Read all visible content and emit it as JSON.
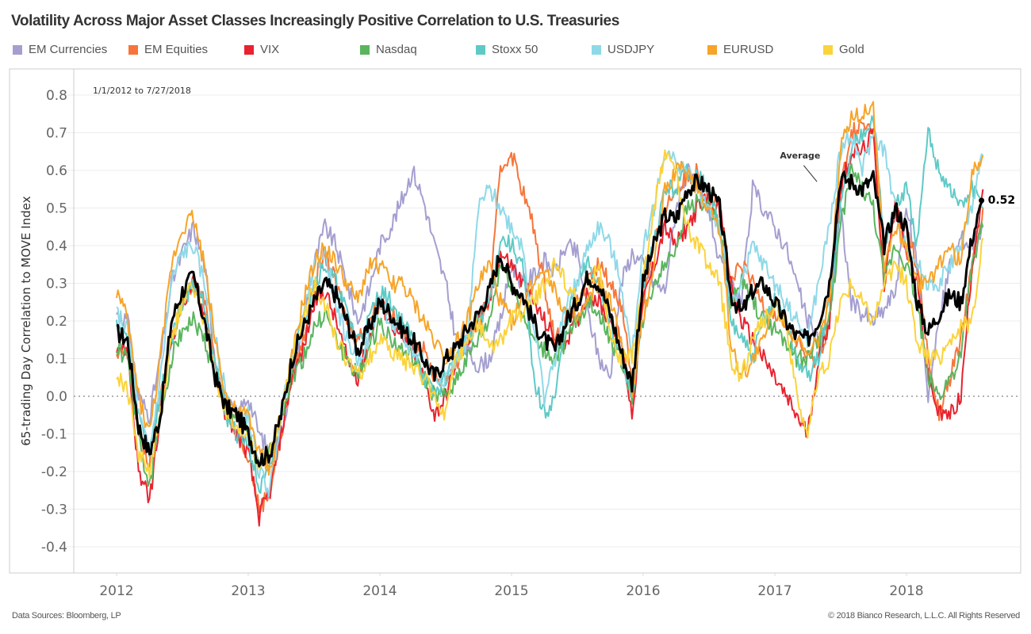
{
  "title": "Volatility Across Major Asset Classes Increasingly Positive Correlation to U.S. Treasuries",
  "footer": {
    "source": "Data Sources: Bloomberg, LP",
    "copyright": "© 2018 Bianco Research, L.L.C. All Rights Reserved"
  },
  "legend": [
    {
      "name": "EM Currencies",
      "color": "#a49fd0"
    },
    {
      "name": "EM Equities",
      "color": "#f7753a"
    },
    {
      "name": "VIX",
      "color": "#e8232f"
    },
    {
      "name": "Nasdaq",
      "color": "#59b55e"
    },
    {
      "name": "Stoxx 50",
      "color": "#5ecac6"
    },
    {
      "name": "USDJPY",
      "color": "#8ed9e8"
    },
    {
      "name": "EURUSD",
      "color": "#f7a428"
    },
    {
      "name": "Gold",
      "color": "#fbd33b"
    }
  ],
  "chart_data": {
    "type": "line",
    "title": "Volatility Across Major Asset Classes Increasingly Positive Correlation to U.S. Treasuries",
    "date_range_label": "1/1/2012 to 7/27/2018",
    "xlabel": "",
    "ylabel": "65-trading Day Correlation to MOVE Index",
    "ylim": [
      -0.46,
      0.85
    ],
    "yticks": [
      -0.4,
      -0.3,
      -0.2,
      -0.1,
      0.0,
      0.1,
      0.2,
      0.3,
      0.4,
      0.5,
      0.6,
      0.7,
      0.8
    ],
    "ytick_labels": [
      "-0.4",
      "-0.3",
      "-0.2",
      "-0.1",
      "0.0",
      "0.1",
      "0.2",
      "0.3",
      "0.4",
      "0.5",
      "0.6",
      "0.7",
      "0.8"
    ],
    "xticks": [
      2012,
      2013,
      2014,
      2015,
      2016,
      2017,
      2018
    ],
    "xtick_labels": [
      "2012",
      "2013",
      "2014",
      "2015",
      "2016",
      "2017",
      "2018"
    ],
    "xlim": [
      2011.67,
      2018.87
    ],
    "x_start": 2012.0,
    "x_step_years": 0.0833,
    "reference_line": {
      "y": 0.0,
      "style": "dotted"
    },
    "grid": true,
    "annotations": [
      {
        "text": "Average",
        "x": 2017.4,
        "y": 0.63,
        "points_to": [
          2017.32,
          0.57
        ]
      },
      {
        "text": "0.52",
        "x": 2018.57,
        "y": 0.52
      }
    ],
    "series": [
      {
        "name": "EM Currencies",
        "color": "#a49fd0",
        "values": [
          0.22,
          0.2,
          0.0,
          -0.05,
          0.1,
          0.3,
          0.38,
          0.45,
          0.35,
          0.1,
          -0.02,
          -0.05,
          0.0,
          -0.1,
          -0.15,
          -0.1,
          0.05,
          0.2,
          0.35,
          0.45,
          0.4,
          0.3,
          0.2,
          0.28,
          0.4,
          0.45,
          0.52,
          0.6,
          0.52,
          0.4,
          0.3,
          0.15,
          0.12,
          0.08,
          0.1,
          0.2,
          0.35,
          0.3,
          0.32,
          0.36,
          0.33,
          0.4,
          0.38,
          0.22,
          0.1,
          0.05,
          0.3,
          0.38,
          0.35,
          0.3,
          0.28,
          0.5,
          0.6,
          0.55,
          0.5,
          0.35,
          0.3,
          0.25,
          0.55,
          0.5,
          0.45,
          0.4,
          0.3,
          0.2,
          0.15,
          0.2,
          0.5,
          0.25,
          0.22,
          0.2,
          0.23,
          0.28,
          0.5,
          0.35,
          0.0,
          0.2,
          0.35,
          0.42,
          0.4,
          0.45
        ]
      },
      {
        "name": "EM Equities",
        "color": "#f7753a",
        "values": [
          0.1,
          0.12,
          -0.1,
          -0.18,
          0.0,
          0.15,
          0.25,
          0.3,
          0.25,
          0.1,
          -0.05,
          -0.1,
          -0.15,
          -0.3,
          -0.25,
          -0.1,
          0.05,
          0.15,
          0.3,
          0.38,
          0.3,
          0.2,
          0.15,
          0.2,
          0.25,
          0.22,
          0.18,
          0.15,
          0.12,
          0.05,
          0.05,
          0.08,
          0.15,
          0.2,
          0.25,
          0.6,
          0.65,
          0.55,
          0.45,
          0.3,
          0.15,
          0.2,
          0.25,
          0.3,
          0.35,
          0.3,
          0.25,
          0.05,
          0.25,
          0.4,
          0.5,
          0.55,
          0.58,
          0.6,
          0.55,
          0.5,
          0.3,
          0.35,
          0.3,
          0.25,
          0.22,
          0.2,
          0.15,
          0.1,
          0.1,
          0.2,
          0.55,
          0.7,
          0.72,
          0.7,
          0.3,
          0.5,
          0.45,
          0.35,
          0.1,
          -0.05,
          0.05,
          0.15,
          0.35,
          0.5
        ]
      },
      {
        "name": "VIX",
        "color": "#e8232f",
        "values": [
          0.14,
          0.12,
          -0.2,
          -0.28,
          -0.05,
          0.15,
          0.25,
          0.3,
          0.22,
          0.05,
          -0.05,
          -0.1,
          -0.15,
          -0.32,
          -0.25,
          -0.1,
          0.05,
          0.12,
          0.25,
          0.28,
          0.2,
          0.1,
          0.05,
          0.15,
          0.25,
          0.2,
          0.15,
          0.12,
          0.05,
          -0.05,
          0.0,
          0.1,
          0.15,
          0.2,
          0.25,
          0.38,
          0.35,
          0.3,
          0.25,
          0.2,
          0.15,
          0.15,
          0.2,
          0.28,
          0.25,
          0.2,
          0.15,
          -0.05,
          0.25,
          0.35,
          0.45,
          0.4,
          0.45,
          0.5,
          0.52,
          0.5,
          0.3,
          0.2,
          0.15,
          0.1,
          0.05,
          0.0,
          -0.05,
          -0.1,
          0.1,
          0.2,
          0.55,
          0.65,
          0.65,
          0.7,
          0.3,
          0.5,
          0.4,
          0.3,
          0.05,
          -0.05,
          -0.05,
          0.0,
          0.35,
          0.55
        ]
      },
      {
        "name": "Nasdaq",
        "color": "#59b55e",
        "values": [
          0.13,
          0.1,
          -0.1,
          -0.25,
          -0.05,
          0.1,
          0.18,
          0.2,
          0.15,
          0.05,
          -0.05,
          -0.05,
          -0.1,
          -0.2,
          -0.15,
          -0.05,
          0.05,
          0.1,
          0.18,
          0.22,
          0.15,
          0.1,
          0.05,
          0.12,
          0.2,
          0.15,
          0.12,
          0.1,
          0.05,
          0.0,
          0.0,
          0.05,
          0.1,
          0.15,
          0.2,
          0.35,
          0.3,
          0.22,
          0.15,
          0.12,
          0.1,
          0.15,
          0.2,
          0.25,
          0.22,
          0.15,
          0.1,
          0.0,
          0.2,
          0.3,
          0.35,
          0.4,
          0.5,
          0.52,
          0.5,
          0.45,
          0.25,
          0.3,
          0.25,
          0.2,
          0.18,
          0.15,
          0.1,
          0.1,
          0.15,
          0.2,
          0.45,
          0.6,
          0.55,
          0.5,
          0.3,
          0.4,
          0.35,
          0.25,
          0.05,
          0.0,
          0.05,
          0.1,
          0.35,
          0.45
        ]
      },
      {
        "name": "Stoxx 50",
        "color": "#5ecac6",
        "values": [
          0.2,
          0.15,
          -0.05,
          -0.15,
          0.0,
          0.15,
          0.25,
          0.3,
          0.25,
          0.1,
          -0.05,
          -0.1,
          -0.12,
          -0.25,
          -0.2,
          -0.05,
          0.1,
          0.2,
          0.3,
          0.35,
          0.3,
          0.22,
          0.15,
          0.2,
          0.28,
          0.25,
          0.2,
          0.15,
          0.05,
          0.0,
          0.05,
          0.1,
          0.15,
          0.2,
          0.25,
          0.42,
          0.4,
          0.35,
          0.05,
          -0.05,
          0.0,
          0.2,
          0.3,
          0.35,
          0.3,
          0.2,
          0.1,
          0.0,
          0.3,
          0.4,
          0.55,
          0.55,
          0.6,
          0.58,
          0.55,
          0.45,
          0.2,
          0.15,
          0.1,
          0.2,
          0.25,
          0.2,
          0.1,
          0.05,
          0.1,
          0.25,
          0.5,
          0.65,
          0.7,
          0.75,
          0.4,
          0.5,
          0.55,
          0.4,
          0.7,
          0.6,
          0.55,
          0.5,
          0.55,
          0.5
        ]
      },
      {
        "name": "USDJPY",
        "color": "#8ed9e8",
        "values": [
          0.22,
          0.18,
          -0.05,
          -0.15,
          0.05,
          0.3,
          0.38,
          0.4,
          0.3,
          0.15,
          0.0,
          -0.05,
          -0.05,
          -0.2,
          -0.25,
          -0.05,
          0.1,
          0.2,
          0.35,
          0.38,
          0.25,
          0.15,
          0.1,
          0.15,
          0.25,
          0.2,
          0.15,
          0.12,
          0.1,
          0.05,
          0.05,
          0.1,
          0.15,
          0.5,
          0.55,
          0.5,
          0.45,
          0.4,
          0.2,
          0.0,
          0.1,
          0.25,
          0.3,
          0.4,
          0.45,
          0.4,
          0.3,
          0.1,
          0.4,
          0.5,
          0.65,
          0.62,
          0.6,
          0.55,
          0.5,
          0.45,
          0.25,
          0.3,
          0.4,
          0.35,
          0.3,
          0.25,
          0.2,
          0.15,
          0.3,
          0.45,
          0.65,
          0.7,
          0.6,
          0.7,
          0.65,
          0.5,
          0.4,
          0.35,
          0.3,
          0.3,
          0.35,
          0.4,
          0.5,
          0.64
        ]
      },
      {
        "name": "EURUSD",
        "color": "#f7a428",
        "values": [
          0.28,
          0.2,
          0.0,
          -0.1,
          0.1,
          0.35,
          0.45,
          0.48,
          0.35,
          0.15,
          0.0,
          -0.05,
          -0.05,
          -0.15,
          -0.2,
          -0.05,
          0.1,
          0.25,
          0.35,
          0.4,
          0.35,
          0.3,
          0.25,
          0.35,
          0.35,
          0.3,
          0.3,
          0.25,
          0.2,
          0.15,
          0.1,
          0.15,
          0.2,
          0.3,
          0.35,
          0.25,
          0.2,
          0.25,
          0.3,
          0.35,
          0.28,
          0.22,
          0.2,
          0.25,
          0.3,
          0.25,
          0.15,
          0.0,
          0.2,
          0.35,
          0.55,
          0.6,
          0.6,
          0.55,
          0.5,
          0.45,
          0.15,
          0.05,
          0.1,
          0.15,
          0.25,
          0.2,
          0.15,
          0.1,
          0.15,
          0.25,
          0.65,
          0.75,
          0.75,
          0.78,
          0.35,
          0.45,
          0.4,
          0.3,
          0.3,
          0.35,
          0.4,
          0.35,
          0.6,
          0.64
        ]
      },
      {
        "name": "Gold",
        "color": "#fbd33b",
        "values": [
          0.05,
          0.02,
          -0.15,
          -0.2,
          -0.05,
          0.15,
          0.25,
          0.3,
          0.2,
          0.05,
          -0.05,
          -0.1,
          -0.1,
          -0.18,
          -0.15,
          -0.05,
          0.1,
          0.2,
          0.3,
          0.25,
          0.15,
          0.1,
          0.05,
          0.1,
          0.15,
          0.12,
          0.1,
          0.08,
          0.05,
          0.0,
          -0.05,
          0.1,
          0.15,
          0.2,
          0.12,
          0.15,
          0.2,
          0.22,
          0.25,
          0.3,
          0.35,
          0.3,
          0.25,
          0.3,
          0.35,
          0.15,
          0.1,
          0.1,
          0.3,
          0.5,
          0.65,
          0.6,
          0.45,
          0.4,
          0.35,
          0.3,
          0.1,
          0.05,
          0.15,
          0.2,
          0.25,
          0.2,
          0.0,
          -0.1,
          0.05,
          0.1,
          0.25,
          0.3,
          0.25,
          0.2,
          0.3,
          0.35,
          0.3,
          0.15,
          0.1,
          0.1,
          0.15,
          0.18,
          0.2,
          0.42
        ]
      },
      {
        "name": "Average",
        "color": "#000000",
        "values": [
          0.17,
          0.15,
          -0.08,
          -0.15,
          -0.05,
          0.2,
          0.28,
          0.32,
          0.2,
          0.05,
          -0.03,
          -0.05,
          -0.1,
          -0.17,
          -0.15,
          -0.05,
          0.1,
          0.18,
          0.25,
          0.3,
          0.27,
          0.2,
          0.12,
          0.18,
          0.25,
          0.22,
          0.18,
          0.15,
          0.1,
          0.05,
          0.1,
          0.13,
          0.18,
          0.22,
          0.28,
          0.38,
          0.3,
          0.27,
          0.2,
          0.15,
          0.12,
          0.2,
          0.25,
          0.32,
          0.3,
          0.22,
          0.12,
          0.03,
          0.3,
          0.4,
          0.48,
          0.47,
          0.55,
          0.57,
          0.55,
          0.5,
          0.27,
          0.22,
          0.28,
          0.3,
          0.25,
          0.2,
          0.16,
          0.15,
          0.2,
          0.3,
          0.58,
          0.57,
          0.55,
          0.58,
          0.4,
          0.5,
          0.45,
          0.25,
          0.17,
          0.22,
          0.27,
          0.25,
          0.42,
          0.52
        ]
      }
    ]
  }
}
